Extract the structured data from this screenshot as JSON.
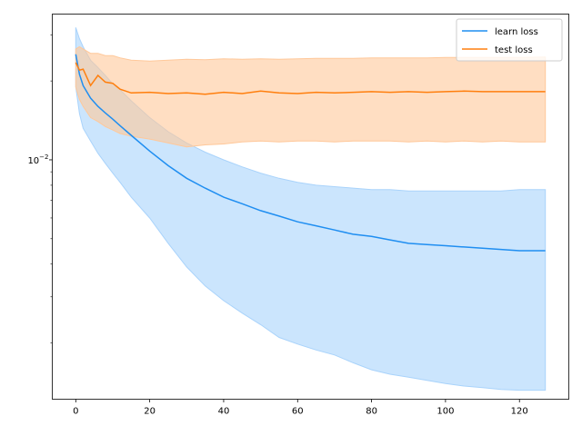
{
  "chart_data": {
    "type": "line",
    "scale": "log-y",
    "xlim": [
      -6.35,
      133.35
    ],
    "ylim": [
      0.00122,
      0.036
    ],
    "x_ticks": [
      0,
      20,
      40,
      60,
      80,
      100,
      120
    ],
    "x_tick_labels": [
      "0",
      "20",
      "40",
      "60",
      "80",
      "100",
      "120"
    ],
    "y_major_ticks": [
      0.01
    ],
    "y_tick_labels": [
      "10^-2"
    ],
    "y_minor_ticks": [
      0.002,
      0.003,
      0.004,
      0.005,
      0.006,
      0.007,
      0.008,
      0.009,
      0.02,
      0.03
    ],
    "legend": {
      "position": "top-right",
      "entries": [
        "learn loss",
        "test loss"
      ]
    },
    "colors": {
      "learn": "#1f8ef1",
      "learn_fill": "#a9d3fb",
      "test": "#ff7f0e",
      "test_fill": "#ffc89a"
    },
    "x": [
      0,
      1,
      2,
      4,
      6,
      8,
      10,
      12,
      15,
      20,
      25,
      30,
      35,
      40,
      45,
      50,
      55,
      60,
      65,
      70,
      75,
      80,
      85,
      90,
      95,
      100,
      105,
      110,
      115,
      120,
      127
    ],
    "series": [
      {
        "name": "learn loss",
        "mean": [
          0.0253,
          0.0212,
          0.0192,
          0.0172,
          0.016,
          0.0151,
          0.0143,
          0.0135,
          0.0124,
          0.0108,
          0.0095,
          0.0085,
          0.0078,
          0.0072,
          0.0068,
          0.0064,
          0.0061,
          0.0058,
          0.0056,
          0.0054,
          0.0052,
          0.0051,
          0.00495,
          0.0048,
          0.00475,
          0.0047,
          0.00465,
          0.0046,
          0.00455,
          0.0045,
          0.0045
        ],
        "upper": [
          0.032,
          0.029,
          0.027,
          0.024,
          0.0225,
          0.021,
          0.0195,
          0.0185,
          0.0168,
          0.0145,
          0.0128,
          0.0116,
          0.0107,
          0.01,
          0.0094,
          0.0089,
          0.0085,
          0.0082,
          0.008,
          0.0079,
          0.0078,
          0.0077,
          0.0077,
          0.0076,
          0.0076,
          0.0076,
          0.0076,
          0.0076,
          0.0076,
          0.0077,
          0.0077
        ],
        "lower": [
          0.019,
          0.015,
          0.0132,
          0.0118,
          0.0106,
          0.0097,
          0.0089,
          0.0082,
          0.0072,
          0.006,
          0.0048,
          0.0039,
          0.0033,
          0.0029,
          0.0026,
          0.00235,
          0.0021,
          0.00198,
          0.00188,
          0.0018,
          0.00168,
          0.00158,
          0.00152,
          0.00148,
          0.00144,
          0.0014,
          0.00137,
          0.00135,
          0.00133,
          0.00132,
          0.00132
        ]
      },
      {
        "name": "test loss",
        "mean": [
          0.0235,
          0.022,
          0.0222,
          0.0192,
          0.021,
          0.0198,
          0.0196,
          0.0186,
          0.018,
          0.0181,
          0.0179,
          0.018,
          0.0178,
          0.0181,
          0.0179,
          0.0183,
          0.018,
          0.0179,
          0.0181,
          0.018,
          0.0181,
          0.0182,
          0.0181,
          0.0182,
          0.0181,
          0.0182,
          0.0183,
          0.0182,
          0.0182,
          0.0182,
          0.0182
        ],
        "upper": [
          0.0265,
          0.027,
          0.0265,
          0.0255,
          0.0255,
          0.025,
          0.025,
          0.0245,
          0.024,
          0.0238,
          0.024,
          0.0242,
          0.0241,
          0.0243,
          0.0242,
          0.0243,
          0.0242,
          0.0243,
          0.0244,
          0.0244,
          0.0244,
          0.0245,
          0.0245,
          0.0245,
          0.0245,
          0.0246,
          0.0246,
          0.0246,
          0.0246,
          0.0246,
          0.0247
        ],
        "lower": [
          0.019,
          0.017,
          0.016,
          0.0145,
          0.014,
          0.0134,
          0.013,
          0.0126,
          0.0123,
          0.012,
          0.0116,
          0.0112,
          0.0114,
          0.0115,
          0.0117,
          0.0118,
          0.0117,
          0.0118,
          0.0118,
          0.0117,
          0.0118,
          0.0118,
          0.0118,
          0.0117,
          0.0118,
          0.0117,
          0.0118,
          0.0117,
          0.0118,
          0.0117,
          0.0117
        ]
      }
    ]
  }
}
